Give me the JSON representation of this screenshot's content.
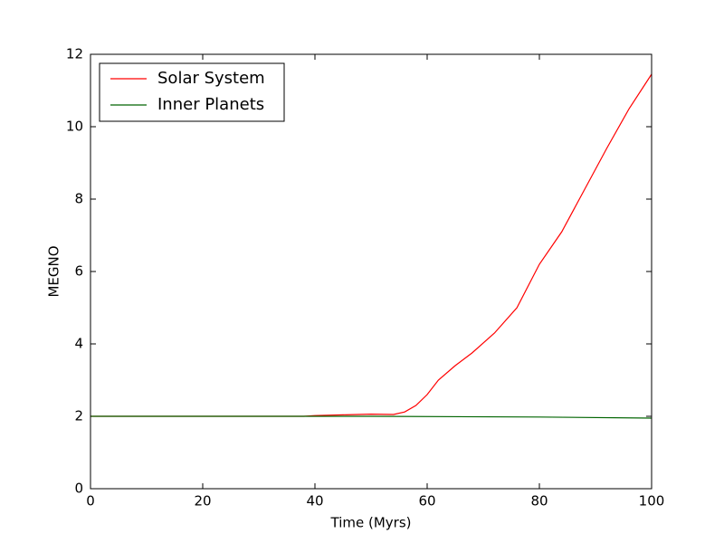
{
  "chart_data": {
    "type": "line",
    "x_label": "Time (Myrs)",
    "y_label": "MEGNO",
    "xlim": [
      0,
      100
    ],
    "ylim": [
      0,
      12
    ],
    "xticks": [
      0,
      20,
      40,
      60,
      80,
      100
    ],
    "yticks": [
      0,
      2,
      4,
      6,
      8,
      10,
      12
    ],
    "grid": false,
    "legend": "upper left",
    "series": [
      {
        "name": "Solar System",
        "color": "#ff0000",
        "x": [
          0,
          10,
          20,
          30,
          38,
          40,
          45,
          50,
          54,
          56,
          58,
          60,
          62,
          65,
          68,
          72,
          76,
          80,
          84,
          88,
          92,
          96,
          100
        ],
        "values": [
          2.0,
          2.0,
          2.0,
          2.0,
          2.0,
          2.02,
          2.04,
          2.06,
          2.05,
          2.12,
          2.3,
          2.6,
          3.0,
          3.4,
          3.75,
          4.3,
          5.0,
          6.2,
          7.1,
          8.25,
          9.4,
          10.5,
          11.45
        ]
      },
      {
        "name": "Inner Planets",
        "color": "#006400",
        "x": [
          0,
          50,
          80,
          100
        ],
        "values": [
          2.0,
          2.0,
          1.98,
          1.95
        ]
      }
    ]
  }
}
